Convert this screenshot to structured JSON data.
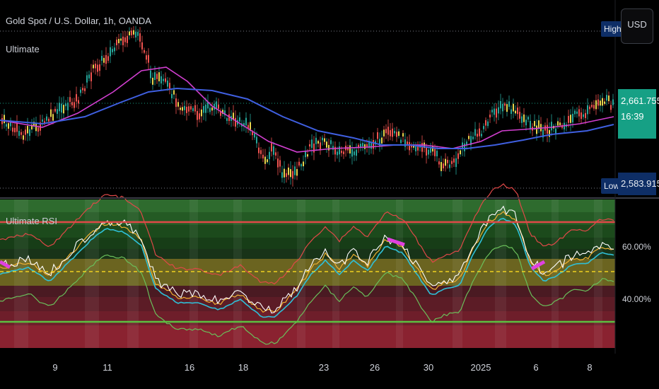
{
  "header": {
    "symbol": "Gold Spot / U.S. Dollar, 1h, OANDA",
    "indicator": "Ultimate",
    "currency_button": "USD"
  },
  "price_panel": {
    "high_tag": "High",
    "low_tag": "Low",
    "last_price": "2,661.755",
    "countdown": "16:39",
    "low_price": "2,583.915",
    "colors": {
      "up": "#26a69a",
      "down": "#ef5350",
      "ma_fast": "#d23fd0",
      "ma_slow": "#3f5fe0",
      "price_tag": "#16a085"
    }
  },
  "rsi_panel": {
    "title": "Ultimate RSI",
    "level_upper_label": "60.00%",
    "level_lower_label": "40.00%"
  },
  "x_axis": {
    "labels": [
      "9",
      "11",
      "16",
      "18",
      "23",
      "26",
      "30",
      "2025",
      "6",
      "8"
    ]
  }
}
